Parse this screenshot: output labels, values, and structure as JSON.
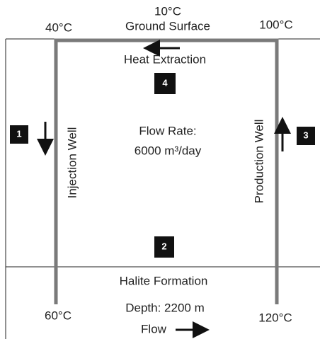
{
  "top": {
    "surface_temp": "10°C",
    "surface_label": "Ground Surface",
    "injection_top_temp": "40°C",
    "production_top_temp": "100°C"
  },
  "labels": {
    "heat_extraction": "Heat Extraction",
    "flow_rate_title": "Flow Rate:",
    "flow_rate_value": "6000 m³/day",
    "injection_well": "Injection Well",
    "production_well": "Production Well"
  },
  "formation": {
    "name": "Halite Formation",
    "depth": "Depth: 2200 m",
    "injection_bottom_temp": "60°C",
    "production_bottom_temp": "120°C",
    "flow": "Flow"
  },
  "markers": [
    "1",
    "2",
    "3",
    "4"
  ]
}
